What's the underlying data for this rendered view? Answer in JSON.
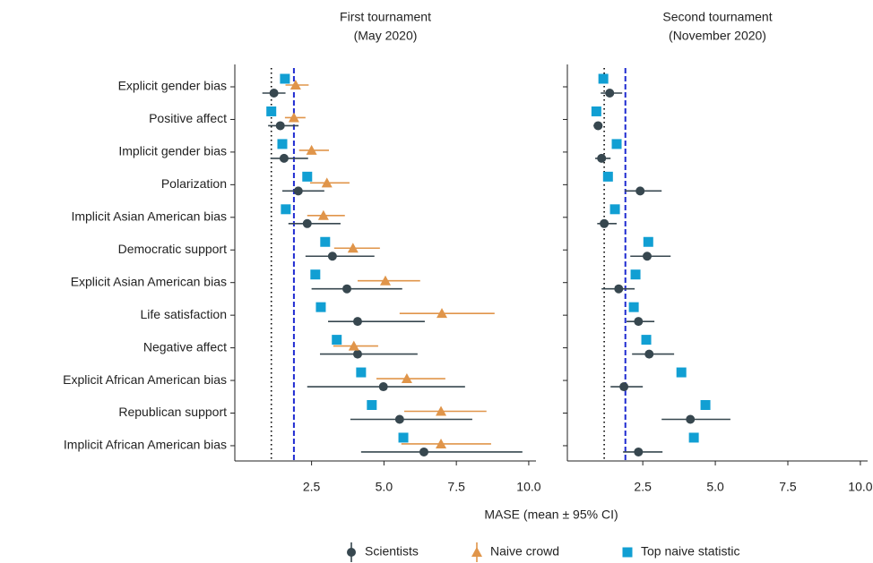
{
  "chart_data": [
    {
      "type": "errorbar",
      "title": "First tournament",
      "subtitle": "(May 2020)",
      "xlabel": "MASE (mean ± 95% CI)",
      "categories": [
        "Explicit gender bias",
        "Positive affect",
        "Implicit gender bias",
        "Polarization",
        "Implicit Asian American bias",
        "Democratic support",
        "Explicit Asian American bias",
        "Life satisfaction",
        "Negative affect",
        "Explicit African American bias",
        "Republican support",
        "Implicit African American bias"
      ],
      "xlim": [
        -0.15,
        10.25
      ],
      "xticks": [
        2.5,
        {
          "value": 5,
          "label": "5.0"
        },
        7.5,
        {
          "value": 10,
          "label": "10.0"
        }
      ],
      "reference_lines": [
        {
          "value": 1.11,
          "color": "#000000",
          "style": "dotted"
        },
        {
          "value": 1.89,
          "color": "#1f2bd1",
          "style": "dashed"
        }
      ],
      "series": [
        {
          "name": "Scientists",
          "color": "#37474f",
          "marker": "circle",
          "values": [
            1.2,
            1.42,
            1.55,
            2.04,
            2.35,
            3.22,
            3.72,
            4.09,
            4.09,
            4.98,
            5.54,
            6.38
          ],
          "lower": [
            0.8,
            1.0,
            1.08,
            1.49,
            1.7,
            2.29,
            2.5,
            3.07,
            2.79,
            2.35,
            3.84,
            4.21
          ],
          "upper": [
            1.6,
            2.05,
            2.38,
            2.94,
            3.5,
            4.67,
            5.63,
            6.41,
            6.16,
            7.8,
            8.05,
            9.78
          ]
        },
        {
          "name": "Naive crowd",
          "color": "#e0954a",
          "marker": "triangle",
          "values": [
            1.95,
            1.89,
            2.5,
            3.03,
            2.91,
            3.93,
            5.05,
            7.0,
            3.96,
            5.79,
            6.97,
            6.97
          ],
          "lower": [
            1.6,
            1.58,
            2.07,
            2.45,
            2.35,
            3.28,
            4.09,
            5.54,
            3.25,
            4.74,
            5.7,
            5.6
          ],
          "upper": [
            2.4,
            2.29,
            3.1,
            3.81,
            3.65,
            4.86,
            6.25,
            8.82,
            4.8,
            7.12,
            8.54,
            8.7
          ]
        },
        {
          "name": "Top naive statistic",
          "color": "#119fd3",
          "marker": "square",
          "values": [
            1.58,
            1.11,
            1.49,
            2.35,
            1.61,
            2.97,
            2.63,
            2.82,
            3.37,
            4.21,
            4.58,
            5.67
          ]
        }
      ]
    },
    {
      "type": "errorbar",
      "title": "Second tournament",
      "subtitle": "(November 2020)",
      "xlim": [
        -0.1,
        10.25
      ],
      "xticks": [
        2.5,
        {
          "value": 5,
          "label": "5.0"
        },
        7.5,
        {
          "value": 10,
          "label": "10.0"
        }
      ],
      "reference_lines": [
        {
          "value": 1.17,
          "color": "#000000",
          "style": "dotted"
        },
        {
          "value": 1.9,
          "color": "#1f2bd1",
          "style": "dashed"
        }
      ],
      "series": [
        {
          "color": "#37474f",
          "marker": "circle",
          "values": [
            1.36,
            0.96,
            1.08,
            2.41,
            1.17,
            2.65,
            1.67,
            2.35,
            2.72,
            1.85,
            4.14,
            2.35
          ],
          "lower": [
            1.05,
            0.8,
            0.86,
            1.88,
            0.93,
            2.07,
            1.08,
            1.94,
            2.13,
            1.39,
            3.15,
            1.82
          ],
          "upper": [
            1.79,
            1.11,
            1.39,
            3.15,
            1.6,
            3.46,
            2.22,
            2.9,
            3.58,
            2.5,
            5.52,
            3.18
          ]
        },
        {
          "color": "#119fd3",
          "marker": "square",
          "values": [
            1.14,
            0.9,
            1.6,
            1.3,
            1.54,
            2.69,
            2.25,
            2.19,
            2.62,
            3.83,
            4.66,
            4.26
          ]
        }
      ]
    }
  ]
}
